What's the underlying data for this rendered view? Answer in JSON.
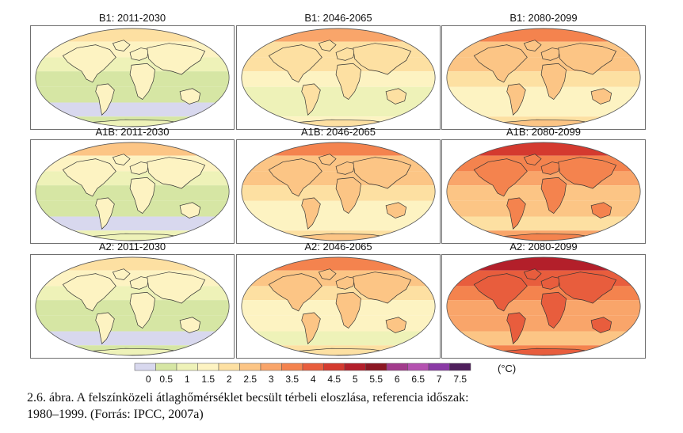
{
  "panels": [
    {
      "title": "B1: 2011-2030",
      "level": 0.8
    },
    {
      "title": "B1: 2046-2065",
      "level": 1.6
    },
    {
      "title": "B1: 2080-2099",
      "level": 2.1
    },
    {
      "title": "A1B: 2011-2030",
      "level": 0.9
    },
    {
      "title": "A1B: 2046-2065",
      "level": 2.1
    },
    {
      "title": "A1B: 2080-2099",
      "level": 3.0
    },
    {
      "title": "A2: 2011-2030",
      "level": 0.8
    },
    {
      "title": "A2: 2046-2065",
      "level": 1.9
    },
    {
      "title": "A2: 2080-2099",
      "level": 3.5
    }
  ],
  "colorbar": {
    "labels": [
      "0",
      "0.5",
      "1",
      "1.5",
      "2",
      "2.5",
      "3",
      "3.5",
      "4",
      "4.5",
      "5",
      "5.5",
      "6",
      "6.5",
      "7",
      "7.5"
    ],
    "colors": [
      "#d8d8ee",
      "#d6e6a4",
      "#eef2b8",
      "#fdf3c2",
      "#fde0a2",
      "#fcc585",
      "#f9a56a",
      "#f4834e",
      "#e85d3d",
      "#d43a2f",
      "#b31f2a",
      "#8c1723",
      "#a23b8c",
      "#b452b0",
      "#8a3aa5",
      "#4f1f5c"
    ],
    "unit": "(°C)"
  },
  "caption": {
    "line1": "2.6. ábra. A felszínközeli átlaghőmérséklet becsült térbeli eloszlása, referencia időszak:",
    "line2": "1980–1999. (Forrás: IPCC, 2007a)"
  }
}
